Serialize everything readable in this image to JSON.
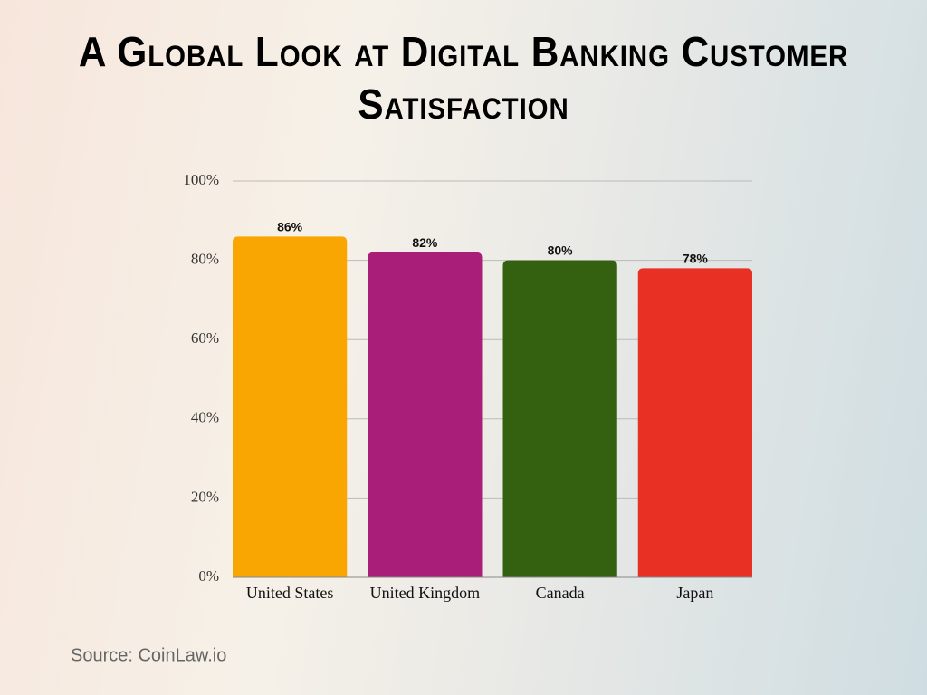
{
  "chart_data": {
    "type": "bar",
    "title": "A Global Look at Digital Banking Customer Satisfaction",
    "categories": [
      "United States",
      "United Kingdom",
      "Canada",
      "Japan"
    ],
    "values": [
      86,
      82,
      80,
      78
    ],
    "value_labels": [
      "86%",
      "82%",
      "80%",
      "78%"
    ],
    "colors": [
      "#f9a602",
      "#a91e78",
      "#336110",
      "#e83024"
    ],
    "ylim": [
      0,
      100
    ],
    "yticks": [
      {
        "value": 0,
        "label": "0%"
      },
      {
        "value": 20,
        "label": "20%"
      },
      {
        "value": 40,
        "label": "40%"
      },
      {
        "value": 60,
        "label": "60%"
      },
      {
        "value": 80,
        "label": "80%"
      },
      {
        "value": 100,
        "label": "100%"
      }
    ],
    "grid": true,
    "source": "Source: CoinLaw.io"
  }
}
